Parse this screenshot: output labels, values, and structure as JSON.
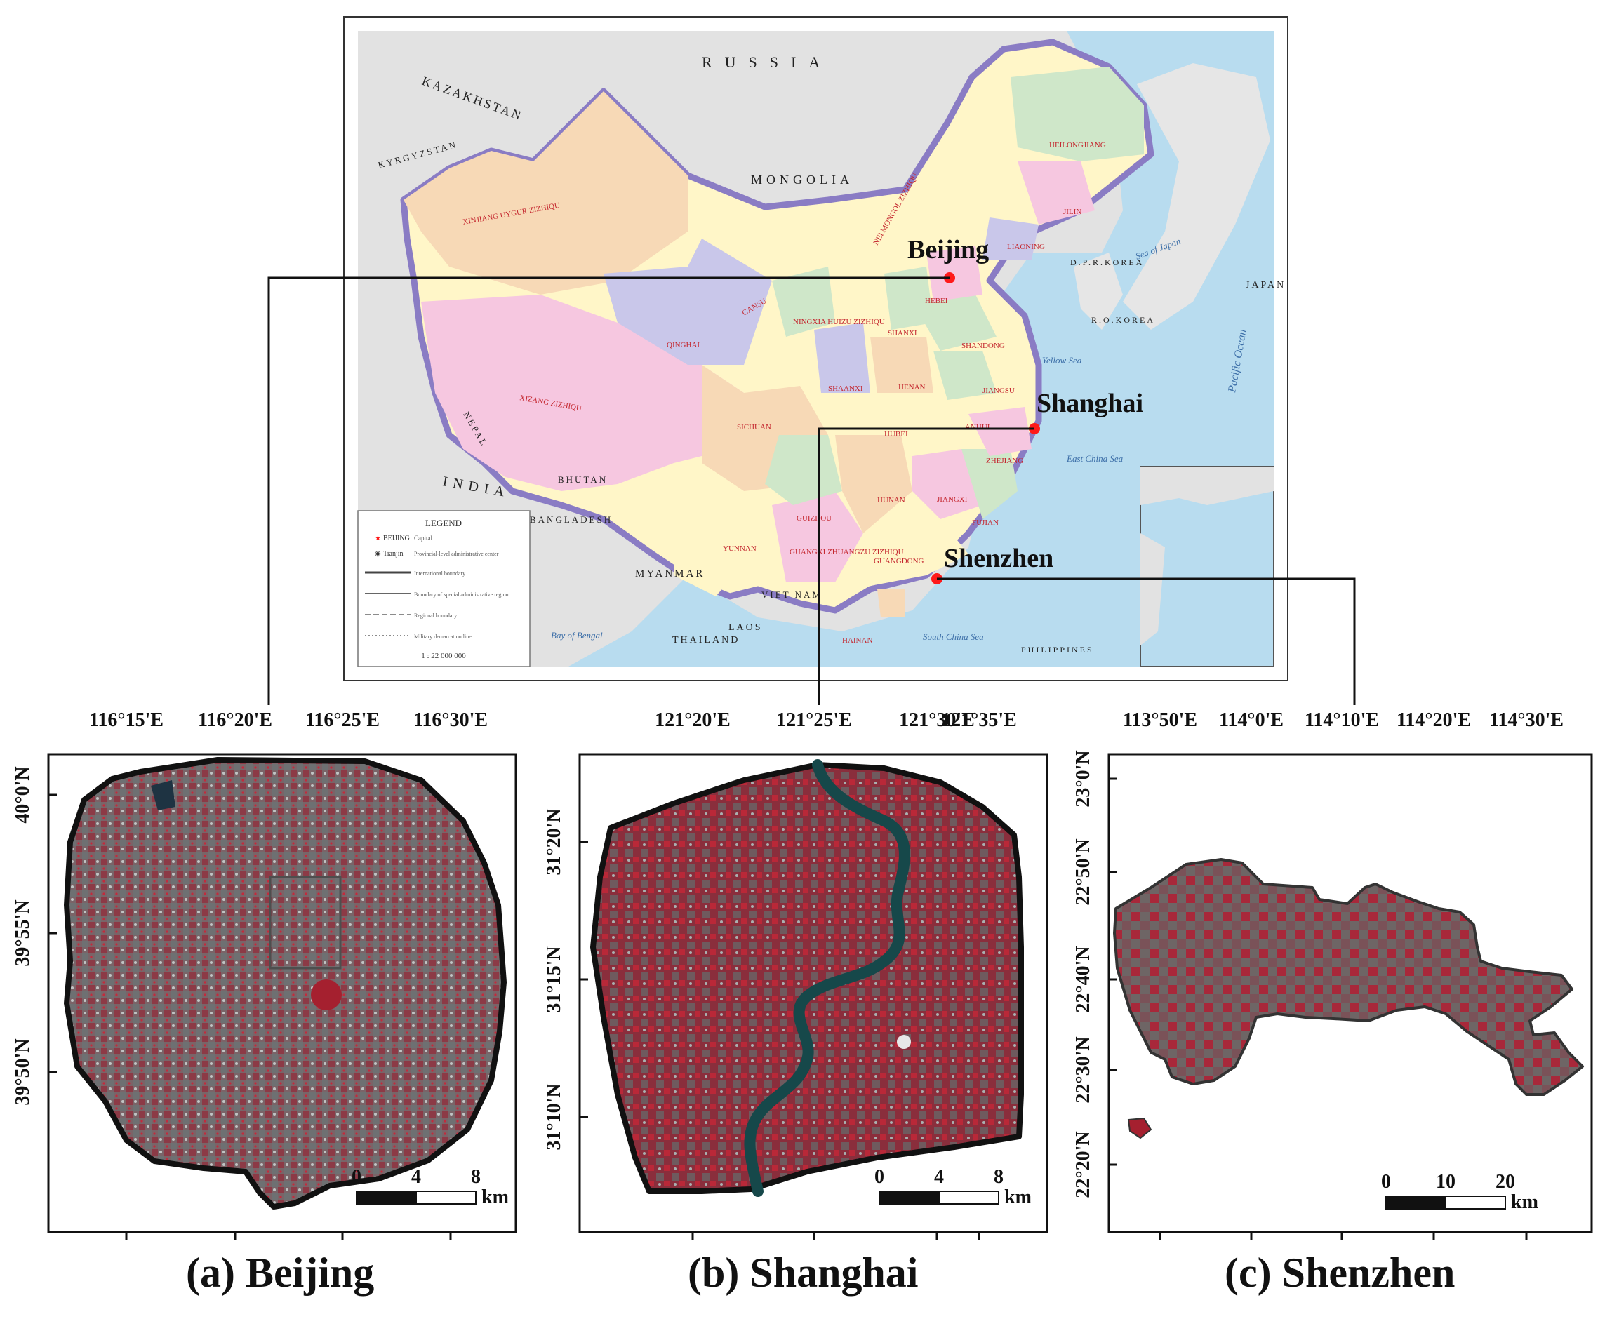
{
  "overview_map": {
    "countries": [
      "RUSSIA",
      "KAZAKHSTAN",
      "MONGOLIA",
      "KYRGYZSTAN",
      "INDIA",
      "NEPAL",
      "BHUTAN",
      "BANGLADESH",
      "MYANMAR",
      "LAOS",
      "THAILAND",
      "VIET NAM",
      "JAPAN",
      "D.P.R.KOREA",
      "R.O.KOREA",
      "PHILIPPINES"
    ],
    "provinces": [
      "XINJIANG UYGUR ZIZHIQU",
      "XIZANG ZIZHIQU",
      "QINGHAI",
      "GANSU",
      "NEI MONGOL ZIZHIQU",
      "HEILONGJIANG",
      "JILIN",
      "LIAONING",
      "SICHUAN",
      "YUNNAN",
      "HUBEI",
      "HUNAN",
      "JIANGXI",
      "FUJIAN",
      "GUANGDONG",
      "GUANGXI ZHUANGZU ZIZHIQU",
      "HAINAN",
      "SHAANXI",
      "SHANXI",
      "HENAN",
      "SHANDONG",
      "HEBEI",
      "ZHEJIANG",
      "ANHUI",
      "JIANGSU",
      "GUIZHOU",
      "NINGXIA HUIZU ZIZHIQU"
    ],
    "seas": [
      "Sea of Japan",
      "Yellow Sea",
      "East China Sea",
      "South China Sea",
      "Bay of Bengal",
      "Pacific Ocean"
    ],
    "callouts": [
      "Beijing",
      "Shanghai",
      "Shenzhen"
    ],
    "legend": {
      "title": "LEGEND",
      "items": [
        "Capital",
        "Provincial-level administrative center",
        "International boundary",
        "Boundary of special administrative region",
        "Regional boundary",
        "Military demarcation line"
      ],
      "capital_label": "BEIJING",
      "city_label": "Tianjin",
      "scale": "1 : 22 000 000"
    },
    "marker_color": "#ff1a1a",
    "colors": {
      "ocean": "#b8dcef",
      "land_foreign": "#e2e2e2",
      "border": "#8a7cc4"
    }
  },
  "panels": [
    {
      "caption": "(a) Beijing",
      "x_ticks": [
        "116°15'E",
        "116°20'E",
        "116°25'E",
        "116°30'E"
      ],
      "y_ticks": [
        "40°0'N",
        "39°55'N",
        "39°50'N"
      ],
      "scale_labels": [
        "0",
        "4",
        "8"
      ],
      "scale_unit": "km"
    },
    {
      "caption": "(b) Shanghai",
      "x_ticks": [
        "121°20'E",
        "121°25'E",
        "121°30'E",
        "121°35'E"
      ],
      "y_ticks": [
        "31°20'N",
        "31°15'N",
        "31°10'N"
      ],
      "scale_labels": [
        "0",
        "4",
        "8"
      ],
      "scale_unit": "km"
    },
    {
      "caption": "(c) Shenzhen",
      "x_ticks": [
        "113°50'E",
        "114°0'E",
        "114°10'E",
        "114°20'E",
        "114°30'E"
      ],
      "y_ticks": [
        "23°0'N",
        "22°50'N",
        "22°40'N",
        "22°30'N",
        "22°20'N"
      ],
      "scale_labels": [
        "0",
        "10",
        "20"
      ],
      "scale_unit": "km"
    }
  ],
  "imagery_color": "#b22a38"
}
